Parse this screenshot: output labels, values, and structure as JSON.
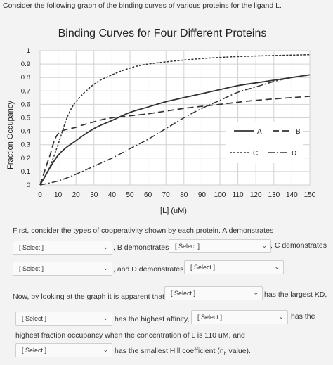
{
  "intro_text": "Consider the following graph of the binding curves of various proteins for the ligand L.",
  "chart_data": {
    "type": "line",
    "title": "Binding Curves for Four Different Proteins",
    "xlabel": "[L] (uM)",
    "ylabel": "Fraction Occupancy",
    "xlim": [
      0,
      150
    ],
    "ylim": [
      0,
      1
    ],
    "xticks": [
      "0",
      "10",
      "20",
      "30",
      "40",
      "50",
      "60",
      "70",
      "80",
      "90",
      "100",
      "110",
      "120",
      "130",
      "140",
      "150"
    ],
    "yticks": [
      "0",
      "0.1",
      "0.2",
      "0.3",
      "0.4",
      "0.5",
      "0.6",
      "0.7",
      "0.8",
      "0.9",
      "1"
    ],
    "grid": true,
    "legend_placement": "right-middle",
    "series": [
      {
        "name": "A",
        "style": "solid",
        "x": [
          0,
          10,
          20,
          30,
          40,
          50,
          60,
          70,
          80,
          90,
          100,
          110,
          120,
          130,
          140,
          150
        ],
        "y": [
          0,
          0.22,
          0.33,
          0.42,
          0.48,
          0.54,
          0.58,
          0.62,
          0.65,
          0.68,
          0.71,
          0.74,
          0.76,
          0.78,
          0.8,
          0.82
        ]
      },
      {
        "name": "B",
        "style": "dashed",
        "x": [
          0,
          5,
          10,
          20,
          30,
          40,
          60,
          80,
          100,
          120,
          150
        ],
        "y": [
          0,
          0.2,
          0.38,
          0.43,
          0.47,
          0.5,
          0.53,
          0.57,
          0.6,
          0.63,
          0.66
        ]
      },
      {
        "name": "C",
        "style": "short-dash",
        "x": [
          0,
          5,
          10,
          15,
          20,
          30,
          40,
          50,
          60,
          80,
          100,
          120,
          150
        ],
        "y": [
          0,
          0.12,
          0.3,
          0.5,
          0.62,
          0.75,
          0.82,
          0.87,
          0.9,
          0.93,
          0.95,
          0.96,
          0.97
        ]
      },
      {
        "name": "D",
        "style": "dash-dot",
        "x": [
          0,
          10,
          20,
          30,
          40,
          50,
          60,
          70,
          80,
          90,
          100,
          110,
          120,
          130,
          140,
          150
        ],
        "y": [
          0,
          0.03,
          0.08,
          0.14,
          0.2,
          0.27,
          0.34,
          0.42,
          0.5,
          0.57,
          0.63,
          0.69,
          0.73,
          0.77,
          0.8,
          0.82
        ]
      }
    ]
  },
  "questions": {
    "q1_prefix": "First, consider the types of cooperativity shown by each protein. A demonstrates",
    "b_demonstrates": ", B demonstrates",
    "c_demonstrates": ", C demonstrates",
    "d_demonstrates": ", and D demonstrates",
    "period": ".",
    "q2_prefix": "Now, by looking at the graph it is apparent that",
    "largest_kd": "has the largest KD,",
    "highest_affinity": "has the highest affinity,",
    "has_the": "has the",
    "highest_fraction": "highest fraction occupancy when the concentration of L is 110 uM, and",
    "smallest_hill": "has the smallest Hill coefficient (n",
    "hill_sub": "h",
    "hill_end": " value)."
  },
  "select_placeholder": "[ Select ]"
}
